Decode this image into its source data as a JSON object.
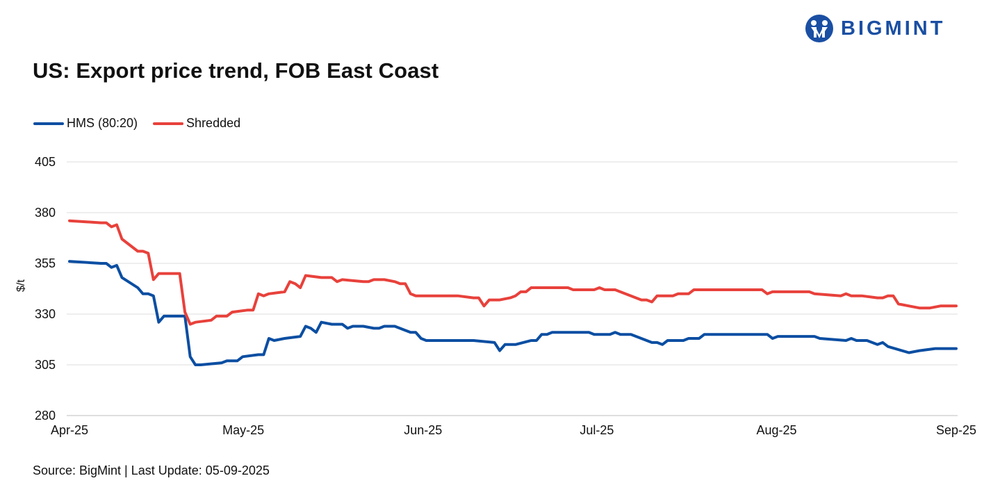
{
  "brand": {
    "name": "BIGMINT",
    "logo_color": "#1a4fa3"
  },
  "title": "US: Export price trend, FOB East Coast",
  "source": "Source: BigMint | Last Update: 05-09-2025",
  "chart_data": {
    "type": "line",
    "ylabel": "$/t",
    "ylim": [
      280,
      405
    ],
    "yticks": [
      405,
      380,
      355,
      330,
      305,
      280
    ],
    "x_start": "2025-04-01",
    "x_end": "2025-09-05",
    "xticks": [
      {
        "label": "Apr-25",
        "date": "2025-04-01"
      },
      {
        "label": "May-25",
        "date": "2025-05-01"
      },
      {
        "label": "Jun-25",
        "date": "2025-06-01"
      },
      {
        "label": "Jul-25",
        "date": "2025-07-01"
      },
      {
        "label": "Aug-25",
        "date": "2025-08-01"
      },
      {
        "label": "Sep-25",
        "date": "2025-09-01"
      }
    ],
    "grid": true,
    "legend_position": "top-left",
    "series": [
      {
        "name": "HMS (80:20)",
        "color": "#0b4ea2",
        "points": [
          [
            "2025-04-01",
            356
          ],
          [
            "2025-04-07",
            355
          ],
          [
            "2025-04-08",
            355
          ],
          [
            "2025-04-09",
            353
          ],
          [
            "2025-04-10",
            354
          ],
          [
            "2025-04-11",
            348
          ],
          [
            "2025-04-14",
            343
          ],
          [
            "2025-04-15",
            340
          ],
          [
            "2025-04-16",
            340
          ],
          [
            "2025-04-17",
            339
          ],
          [
            "2025-04-18",
            326
          ],
          [
            "2025-04-19",
            329
          ],
          [
            "2025-04-23",
            329
          ],
          [
            "2025-04-24",
            309
          ],
          [
            "2025-04-25",
            305
          ],
          [
            "2025-04-26",
            305
          ],
          [
            "2025-04-30",
            306
          ],
          [
            "2025-05-01",
            307
          ],
          [
            "2025-05-02",
            307
          ],
          [
            "2025-05-03",
            307
          ],
          [
            "2025-05-04",
            309
          ],
          [
            "2025-05-07",
            310
          ],
          [
            "2025-05-08",
            310
          ],
          [
            "2025-05-09",
            318
          ],
          [
            "2025-05-10",
            317
          ],
          [
            "2025-05-12",
            318
          ],
          [
            "2025-05-15",
            319
          ],
          [
            "2025-05-16",
            324
          ],
          [
            "2025-05-17",
            323
          ],
          [
            "2025-05-18",
            321
          ],
          [
            "2025-05-19",
            326
          ],
          [
            "2025-05-21",
            325
          ],
          [
            "2025-05-23",
            325
          ],
          [
            "2025-05-24",
            323
          ],
          [
            "2025-05-25",
            324
          ],
          [
            "2025-05-27",
            324
          ],
          [
            "2025-05-29",
            323
          ],
          [
            "2025-05-30",
            323
          ],
          [
            "2025-05-31",
            324
          ],
          [
            "2025-06-02",
            324
          ],
          [
            "2025-06-04",
            322
          ],
          [
            "2025-06-05",
            321
          ],
          [
            "2025-06-06",
            321
          ],
          [
            "2025-06-07",
            318
          ],
          [
            "2025-06-08",
            317
          ],
          [
            "2025-06-17",
            317
          ],
          [
            "2025-06-21",
            316
          ],
          [
            "2025-06-22",
            312
          ],
          [
            "2025-06-23",
            315
          ],
          [
            "2025-06-25",
            315
          ],
          [
            "2025-06-28",
            317
          ],
          [
            "2025-06-29",
            317
          ],
          [
            "2025-06-30",
            320
          ],
          [
            "2025-07-01",
            320
          ],
          [
            "2025-07-02",
            321
          ],
          [
            "2025-07-09",
            321
          ],
          [
            "2025-07-10",
            320
          ],
          [
            "2025-07-13",
            320
          ],
          [
            "2025-07-14",
            321
          ],
          [
            "2025-07-15",
            320
          ],
          [
            "2025-07-17",
            320
          ],
          [
            "2025-07-21",
            316
          ],
          [
            "2025-07-22",
            316
          ],
          [
            "2025-07-23",
            315
          ],
          [
            "2025-07-24",
            317
          ],
          [
            "2025-07-27",
            317
          ],
          [
            "2025-07-28",
            318
          ],
          [
            "2025-07-30",
            318
          ],
          [
            "2025-07-31",
            320
          ],
          [
            "2025-08-12",
            320
          ],
          [
            "2025-08-13",
            318
          ],
          [
            "2025-08-14",
            319
          ],
          [
            "2025-08-21",
            319
          ],
          [
            "2025-08-22",
            318
          ],
          [
            "2025-08-27",
            317
          ],
          [
            "2025-08-28",
            318
          ],
          [
            "2025-08-29",
            317
          ],
          [
            "2025-08-31",
            317
          ],
          [
            "2025-09-02",
            315
          ],
          [
            "2025-09-03",
            316
          ],
          [
            "2025-09-03",
            316
          ],
          [
            "2025-09-04",
            314
          ],
          [
            "2025-09-08",
            311
          ],
          [
            "2025-09-10",
            312
          ],
          [
            "2025-09-13",
            313
          ],
          [
            "2025-09-15",
            313
          ],
          [
            "2025-09-16",
            313
          ],
          [
            "2025-09-17",
            313
          ]
        ]
      },
      {
        "name": "Shredded",
        "color": "#e8413b",
        "points": [
          [
            "2025-04-01",
            376
          ],
          [
            "2025-04-07",
            375
          ],
          [
            "2025-04-08",
            375
          ],
          [
            "2025-04-09",
            373
          ],
          [
            "2025-04-10",
            374
          ],
          [
            "2025-04-11",
            367
          ],
          [
            "2025-04-14",
            361
          ],
          [
            "2025-04-15",
            361
          ],
          [
            "2025-04-16",
            360
          ],
          [
            "2025-04-17",
            347
          ],
          [
            "2025-04-18",
            350
          ],
          [
            "2025-04-22",
            350
          ],
          [
            "2025-04-23",
            331
          ],
          [
            "2025-04-24",
            325
          ],
          [
            "2025-04-25",
            326
          ],
          [
            "2025-04-28",
            327
          ],
          [
            "2025-04-29",
            329
          ],
          [
            "2025-04-30",
            329
          ],
          [
            "2025-05-01",
            329
          ],
          [
            "2025-05-02",
            331
          ],
          [
            "2025-05-05",
            332
          ],
          [
            "2025-05-06",
            332
          ],
          [
            "2025-05-07",
            340
          ],
          [
            "2025-05-08",
            339
          ],
          [
            "2025-05-09",
            340
          ],
          [
            "2025-05-12",
            341
          ],
          [
            "2025-05-13",
            346
          ],
          [
            "2025-05-14",
            345
          ],
          [
            "2025-05-15",
            343
          ],
          [
            "2025-05-16",
            349
          ],
          [
            "2025-05-19",
            348
          ],
          [
            "2025-05-21",
            348
          ],
          [
            "2025-05-22",
            346
          ],
          [
            "2025-05-23",
            347
          ],
          [
            "2025-05-27",
            346
          ],
          [
            "2025-05-28",
            346
          ],
          [
            "2025-05-29",
            347
          ],
          [
            "2025-05-31",
            347
          ],
          [
            "2025-06-02",
            346
          ],
          [
            "2025-06-03",
            345
          ],
          [
            "2025-06-04",
            345
          ],
          [
            "2025-06-05",
            340
          ],
          [
            "2025-06-06",
            339
          ],
          [
            "2025-06-14",
            339
          ],
          [
            "2025-06-17",
            338
          ],
          [
            "2025-06-18",
            338
          ],
          [
            "2025-06-19",
            334
          ],
          [
            "2025-06-20",
            337
          ],
          [
            "2025-06-22",
            337
          ],
          [
            "2025-06-24",
            338
          ],
          [
            "2025-06-25",
            339
          ],
          [
            "2025-06-26",
            341
          ],
          [
            "2025-06-27",
            341
          ],
          [
            "2025-06-28",
            343
          ],
          [
            "2025-07-05",
            343
          ],
          [
            "2025-07-06",
            342
          ],
          [
            "2025-07-09",
            342
          ],
          [
            "2025-07-10",
            342
          ],
          [
            "2025-07-11",
            343
          ],
          [
            "2025-07-12",
            342
          ],
          [
            "2025-07-14",
            342
          ],
          [
            "2025-07-19",
            337
          ],
          [
            "2025-07-20",
            337
          ],
          [
            "2025-07-21",
            336
          ],
          [
            "2025-07-22",
            339
          ],
          [
            "2025-07-25",
            339
          ],
          [
            "2025-07-26",
            340
          ],
          [
            "2025-07-28",
            340
          ],
          [
            "2025-07-29",
            342
          ],
          [
            "2025-08-11",
            342
          ],
          [
            "2025-08-12",
            340
          ],
          [
            "2025-08-13",
            341
          ],
          [
            "2025-08-20",
            341
          ],
          [
            "2025-08-21",
            340
          ],
          [
            "2025-08-26",
            339
          ],
          [
            "2025-08-27",
            340
          ],
          [
            "2025-08-28",
            339
          ],
          [
            "2025-08-30",
            339
          ],
          [
            "2025-09-02",
            338
          ],
          [
            "2025-09-03",
            338
          ],
          [
            "2025-09-04",
            339
          ],
          [
            "2025-09-05",
            339
          ],
          [
            "2025-09-06",
            335
          ],
          [
            "2025-09-08",
            334
          ],
          [
            "2025-09-10",
            333
          ],
          [
            "2025-09-12",
            333
          ],
          [
            "2025-09-14",
            334
          ],
          [
            "2025-09-15",
            334
          ],
          [
            "2025-09-17",
            334
          ]
        ]
      }
    ]
  }
}
